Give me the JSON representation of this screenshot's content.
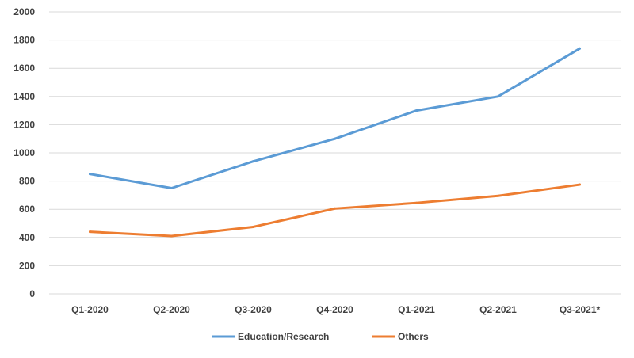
{
  "chart_data": {
    "type": "line",
    "title": "",
    "xlabel": "",
    "ylabel": "",
    "categories": [
      "Q1-2020",
      "Q2-2020",
      "Q3-2020",
      "Q4-2020",
      "Q1-2021",
      "Q2-2021",
      "Q3-2021*"
    ],
    "ylim": [
      0,
      2000
    ],
    "yticks": [
      0,
      200,
      400,
      600,
      800,
      1000,
      1200,
      1400,
      1600,
      1800,
      2000
    ],
    "grid": true,
    "legend_position": "bottom",
    "series": [
      {
        "name": "Education/Research",
        "color": "#5B9BD5",
        "values": [
          850,
          750,
          940,
          1100,
          1300,
          1400,
          1740
        ]
      },
      {
        "name": "Others",
        "color": "#ED7D31",
        "values": [
          440,
          410,
          475,
          605,
          645,
          695,
          775
        ]
      }
    ]
  }
}
